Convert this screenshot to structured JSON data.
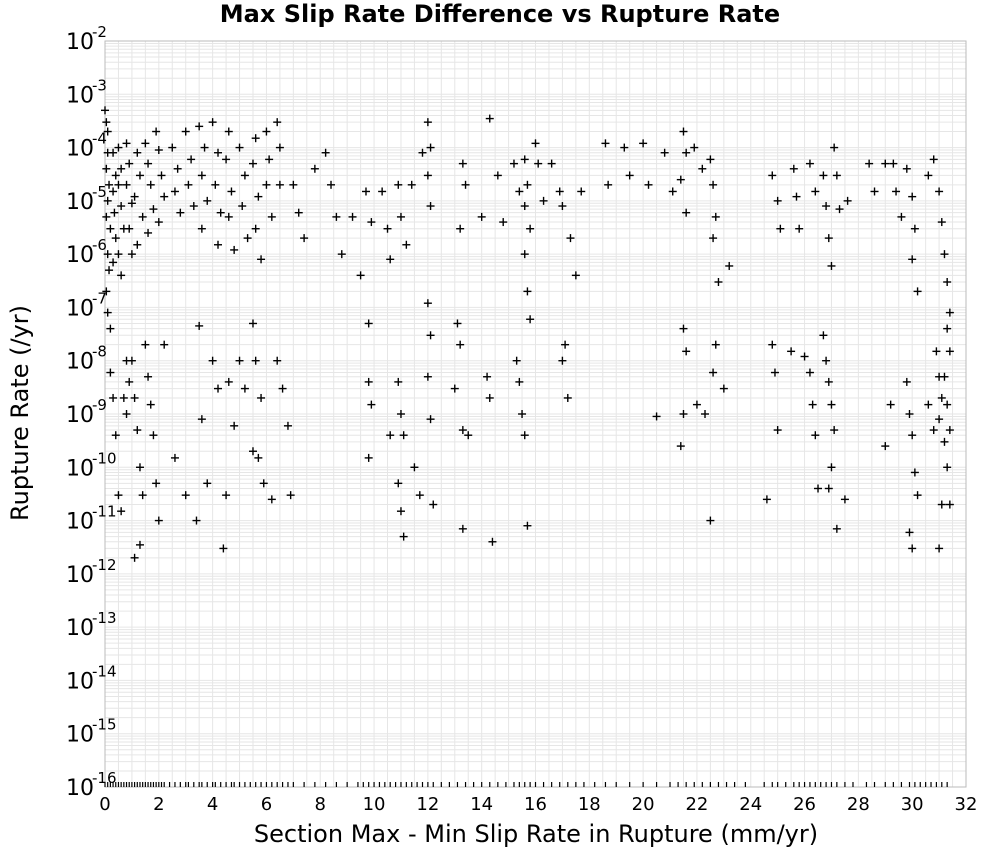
{
  "chart_data": {
    "type": "scatter",
    "title": "Max Slip Rate Difference vs Rupture Rate",
    "xlabel": "Section Max - Min Slip Rate in Rupture (mm/yr)",
    "ylabel": "Rupture Rate (/yr)",
    "xlim": [
      0,
      32
    ],
    "ylim": [
      1e-16,
      0.01
    ],
    "yscale": "log",
    "grid": true,
    "marker": "plus",
    "marker_color": "#000000",
    "grid_color": "#e6e6e6",
    "legend": "none",
    "x_ticks": [
      "0",
      "2",
      "4",
      "6",
      "8",
      "10",
      "12",
      "14",
      "16",
      "18",
      "20",
      "22",
      "24",
      "26",
      "28",
      "30",
      "32"
    ],
    "y_ticks": [
      {
        "base": "10",
        "exp": "-2"
      },
      {
        "base": "10",
        "exp": "-3"
      },
      {
        "base": "10",
        "exp": "-4"
      },
      {
        "base": "10",
        "exp": "-5"
      },
      {
        "base": "10",
        "exp": "-6"
      },
      {
        "base": "10",
        "exp": "-7"
      },
      {
        "base": "10",
        "exp": "-8"
      },
      {
        "base": "10",
        "exp": "-9"
      },
      {
        "base": "10",
        "exp": "-10"
      },
      {
        "base": "10",
        "exp": "-11"
      },
      {
        "base": "10",
        "exp": "-12"
      },
      {
        "base": "10",
        "exp": "-13"
      },
      {
        "base": "10",
        "exp": "-14"
      },
      {
        "base": "10",
        "exp": "-15"
      },
      {
        "base": "10",
        "exp": "-16"
      }
    ],
    "points": [
      [
        0.0,
        0.0005
      ],
      [
        0.05,
        0.0003
      ],
      [
        0.1,
        0.0002
      ],
      [
        0.1,
        8e-05
      ],
      [
        0.05,
        4e-05
      ],
      [
        0.15,
        2e-05
      ],
      [
        0.1,
        1e-05
      ],
      [
        0.05,
        5e-06
      ],
      [
        0.2,
        3e-06
      ],
      [
        0.1,
        1e-06
      ],
      [
        0.15,
        5e-07
      ],
      [
        0.05,
        2e-07
      ],
      [
        0.1,
        8e-08
      ],
      [
        0.2,
        4e-08
      ],
      [
        0.3,
        8e-05
      ],
      [
        0.4,
        3e-05
      ],
      [
        0.3,
        1.5e-05
      ],
      [
        0.35,
        6e-06
      ],
      [
        0.4,
        2e-06
      ],
      [
        0.3,
        7e-07
      ],
      [
        0.5,
        0.0001
      ],
      [
        0.6,
        4e-05
      ],
      [
        0.5,
        2e-05
      ],
      [
        0.6,
        8e-06
      ],
      [
        0.7,
        3e-06
      ],
      [
        0.5,
        1e-06
      ],
      [
        0.6,
        4e-07
      ],
      [
        0.8,
        0.00012
      ],
      [
        0.9,
        5e-05
      ],
      [
        0.8,
        2e-05
      ],
      [
        1.0,
        9e-06
      ],
      [
        0.9,
        3e-06
      ],
      [
        1.0,
        1e-06
      ],
      [
        1.2,
        8e-05
      ],
      [
        1.3,
        3e-05
      ],
      [
        1.1,
        1.2e-05
      ],
      [
        1.4,
        5e-06
      ],
      [
        1.2,
        1.5e-06
      ],
      [
        1.5,
        0.00012
      ],
      [
        1.6,
        5e-05
      ],
      [
        1.7,
        2e-05
      ],
      [
        1.8,
        7e-06
      ],
      [
        1.6,
        2.5e-06
      ],
      [
        1.9,
        0.0002
      ],
      [
        2.0,
        9e-05
      ],
      [
        2.1,
        3e-05
      ],
      [
        2.2,
        1.2e-05
      ],
      [
        2.0,
        4e-06
      ],
      [
        2.5,
        0.0001
      ],
      [
        2.7,
        4e-05
      ],
      [
        2.6,
        1.5e-05
      ],
      [
        2.8,
        6e-06
      ],
      [
        3.0,
        0.0002
      ],
      [
        3.2,
        6e-05
      ],
      [
        3.1,
        2e-05
      ],
      [
        3.3,
        8e-06
      ],
      [
        3.5,
        0.00025
      ],
      [
        3.7,
        0.0001
      ],
      [
        3.6,
        3e-05
      ],
      [
        3.8,
        1e-05
      ],
      [
        3.6,
        3e-06
      ],
      [
        4.0,
        0.0003
      ],
      [
        4.2,
        8e-05
      ],
      [
        4.1,
        2e-05
      ],
      [
        4.3,
        6e-06
      ],
      [
        4.2,
        1.5e-06
      ],
      [
        4.6,
        0.0002
      ],
      [
        4.5,
        6e-05
      ],
      [
        4.7,
        1.5e-05
      ],
      [
        4.6,
        5e-06
      ],
      [
        4.8,
        1.2e-06
      ],
      [
        5.0,
        0.0001
      ],
      [
        5.2,
        3e-05
      ],
      [
        5.1,
        8e-06
      ],
      [
        5.3,
        2e-06
      ],
      [
        5.6,
        0.00015
      ],
      [
        5.5,
        5e-05
      ],
      [
        5.7,
        1.2e-05
      ],
      [
        5.6,
        3e-06
      ],
      [
        5.8,
        8e-07
      ],
      [
        6.0,
        0.0002
      ],
      [
        6.1,
        6e-05
      ],
      [
        6.0,
        2e-05
      ],
      [
        6.2,
        5e-06
      ],
      [
        6.4,
        0.0003
      ],
      [
        6.5,
        0.0001
      ],
      [
        6.5,
        2e-05
      ],
      [
        7.0,
        2e-05
      ],
      [
        7.2,
        6e-06
      ],
      [
        7.4,
        2e-06
      ],
      [
        7.8,
        4e-05
      ],
      [
        8.2,
        8e-05
      ],
      [
        8.4,
        2e-05
      ],
      [
        8.6,
        5e-06
      ],
      [
        8.8,
        1e-06
      ],
      [
        9.2,
        5e-06
      ],
      [
        9.5,
        4e-07
      ],
      [
        9.7,
        1.5e-05
      ],
      [
        9.9,
        4e-06
      ],
      [
        10.3,
        1.5e-05
      ],
      [
        10.5,
        3e-06
      ],
      [
        10.6,
        8e-07
      ],
      [
        10.9,
        2e-05
      ],
      [
        11.0,
        5e-06
      ],
      [
        11.2,
        1.5e-06
      ],
      [
        11.4,
        2e-05
      ],
      [
        11.8,
        8e-05
      ],
      [
        12.0,
        0.0003
      ],
      [
        12.1,
        0.0001
      ],
      [
        12.0,
        3e-05
      ],
      [
        12.1,
        8e-06
      ],
      [
        13.3,
        5e-05
      ],
      [
        13.4,
        2e-05
      ],
      [
        13.2,
        3e-06
      ],
      [
        14.0,
        5e-06
      ],
      [
        14.3,
        0.00035
      ],
      [
        14.6,
        3e-05
      ],
      [
        14.8,
        4e-06
      ],
      [
        15.2,
        5e-05
      ],
      [
        15.4,
        1.5e-05
      ],
      [
        15.6,
        6e-05
      ],
      [
        15.7,
        2e-05
      ],
      [
        15.6,
        8e-06
      ],
      [
        15.8,
        3e-06
      ],
      [
        15.6,
        1e-06
      ],
      [
        16.0,
        0.00012
      ],
      [
        16.1,
        5e-05
      ],
      [
        16.3,
        1e-05
      ],
      [
        16.6,
        5e-05
      ],
      [
        16.9,
        1.5e-05
      ],
      [
        17.0,
        8e-06
      ],
      [
        17.3,
        2e-06
      ],
      [
        17.5,
        4e-07
      ],
      [
        17.7,
        1.5e-05
      ],
      [
        18.6,
        0.00012
      ],
      [
        18.7,
        2e-05
      ],
      [
        19.3,
        0.0001
      ],
      [
        19.5,
        3e-05
      ],
      [
        20.0,
        0.00012
      ],
      [
        20.2,
        2e-05
      ],
      [
        20.8,
        8e-05
      ],
      [
        21.1,
        1.5e-05
      ],
      [
        21.5,
        0.0002
      ],
      [
        21.6,
        8e-05
      ],
      [
        21.4,
        2.5e-05
      ],
      [
        21.6,
        6e-06
      ],
      [
        21.9,
        0.0001
      ],
      [
        22.2,
        4e-05
      ],
      [
        22.5,
        6e-05
      ],
      [
        22.6,
        2e-05
      ],
      [
        22.7,
        5e-06
      ],
      [
        22.6,
        2e-06
      ],
      [
        22.8,
        3e-07
      ],
      [
        23.2,
        6e-07
      ],
      [
        24.8,
        3e-05
      ],
      [
        25.0,
        1e-05
      ],
      [
        25.1,
        3e-06
      ],
      [
        25.6,
        4e-05
      ],
      [
        25.7,
        1.2e-05
      ],
      [
        25.8,
        3e-06
      ],
      [
        26.2,
        5e-05
      ],
      [
        26.4,
        1.5e-05
      ],
      [
        26.7,
        3e-05
      ],
      [
        26.8,
        8e-06
      ],
      [
        26.9,
        2e-06
      ],
      [
        27.0,
        6e-07
      ],
      [
        27.1,
        0.0001
      ],
      [
        27.2,
        3e-05
      ],
      [
        27.3,
        7e-06
      ],
      [
        27.6,
        1e-05
      ],
      [
        28.4,
        5e-05
      ],
      [
        28.6,
        1.5e-05
      ],
      [
        29.0,
        5e-05
      ],
      [
        29.3,
        5e-05
      ],
      [
        29.4,
        1.5e-05
      ],
      [
        29.6,
        5e-06
      ],
      [
        29.8,
        4e-05
      ],
      [
        30.0,
        1.2e-05
      ],
      [
        30.1,
        3e-06
      ],
      [
        30.0,
        8e-07
      ],
      [
        30.2,
        2e-07
      ],
      [
        30.6,
        3e-05
      ],
      [
        30.8,
        6e-05
      ],
      [
        31.0,
        1.5e-05
      ],
      [
        31.1,
        4e-06
      ],
      [
        31.2,
        1e-06
      ],
      [
        31.3,
        3e-07
      ],
      [
        31.4,
        8e-08
      ],
      [
        0.2,
        6e-09
      ],
      [
        0.3,
        2e-09
      ],
      [
        0.4,
        4e-10
      ],
      [
        0.5,
        3e-11
      ],
      [
        0.6,
        1.5e-11
      ],
      [
        0.7,
        2e-09
      ],
      [
        0.8,
        1e-09
      ],
      [
        0.9,
        4e-09
      ],
      [
        1.0,
        1e-08
      ],
      [
        1.1,
        2e-09
      ],
      [
        1.2,
        5e-10
      ],
      [
        1.3,
        1e-10
      ],
      [
        1.4,
        3e-11
      ],
      [
        1.5,
        2e-08
      ],
      [
        1.6,
        5e-09
      ],
      [
        1.7,
        1.5e-09
      ],
      [
        1.8,
        4e-10
      ],
      [
        1.9,
        5e-11
      ],
      [
        2.0,
        1e-11
      ],
      [
        1.3,
        3.5e-12
      ],
      [
        1.1,
        2e-12
      ],
      [
        0.8,
        1e-08
      ],
      [
        2.2,
        2e-08
      ],
      [
        2.6,
        1.5e-10
      ],
      [
        3.0,
        3e-11
      ],
      [
        3.4,
        1e-11
      ],
      [
        3.6,
        8e-10
      ],
      [
        3.8,
        5e-11
      ],
      [
        4.0,
        1e-08
      ],
      [
        4.2,
        3e-09
      ],
      [
        4.5,
        3e-11
      ],
      [
        4.4,
        3e-12
      ],
      [
        4.8,
        6e-10
      ],
      [
        4.6,
        4e-09
      ],
      [
        5.0,
        1e-08
      ],
      [
        5.2,
        3e-09
      ],
      [
        5.5,
        5e-08
      ],
      [
        5.6,
        1e-08
      ],
      [
        5.8,
        2e-09
      ],
      [
        5.5,
        2e-10
      ],
      [
        5.7,
        1.5e-10
      ],
      [
        5.9,
        5e-11
      ],
      [
        6.2,
        2.5e-11
      ],
      [
        6.4,
        1e-08
      ],
      [
        6.6,
        3e-09
      ],
      [
        6.8,
        6e-10
      ],
      [
        6.9,
        3e-11
      ],
      [
        3.5,
        4.5e-08
      ],
      [
        9.8,
        5e-08
      ],
      [
        9.8,
        4e-09
      ],
      [
        9.9,
        1.5e-09
      ],
      [
        9.8,
        1.5e-10
      ],
      [
        10.6,
        4e-10
      ],
      [
        10.9,
        4e-09
      ],
      [
        11.0,
        1e-09
      ],
      [
        11.1,
        4e-10
      ],
      [
        10.9,
        5e-11
      ],
      [
        11.0,
        1.5e-11
      ],
      [
        11.1,
        5e-12
      ],
      [
        11.5,
        1e-10
      ],
      [
        11.7,
        3e-11
      ],
      [
        12.0,
        5e-09
      ],
      [
        12.1,
        8e-10
      ],
      [
        12.2,
        2e-11
      ],
      [
        12.0,
        1.2e-07
      ],
      [
        12.1,
        3e-08
      ],
      [
        13.1,
        5e-08
      ],
      [
        13.2,
        2e-08
      ],
      [
        13.0,
        3e-09
      ],
      [
        13.3,
        5e-10
      ],
      [
        13.5,
        4e-10
      ],
      [
        13.3,
        7e-12
      ],
      [
        14.2,
        5e-09
      ],
      [
        14.3,
        2e-09
      ],
      [
        14.4,
        4e-12
      ],
      [
        15.3,
        1e-08
      ],
      [
        15.4,
        4e-09
      ],
      [
        15.5,
        1e-09
      ],
      [
        15.6,
        4e-10
      ],
      [
        15.7,
        2e-07
      ],
      [
        15.8,
        6e-08
      ],
      [
        15.7,
        8e-12
      ],
      [
        17.1,
        2e-08
      ],
      [
        17.0,
        1e-08
      ],
      [
        17.2,
        2e-09
      ],
      [
        20.5,
        9e-10
      ],
      [
        21.5,
        4e-08
      ],
      [
        21.6,
        1.5e-08
      ],
      [
        21.5,
        1e-09
      ],
      [
        21.4,
        2.5e-10
      ],
      [
        22.0,
        1.5e-09
      ],
      [
        22.3,
        1e-09
      ],
      [
        22.7,
        2e-08
      ],
      [
        22.6,
        6e-09
      ],
      [
        23.0,
        3e-09
      ],
      [
        22.5,
        1e-11
      ],
      [
        24.8,
        2e-08
      ],
      [
        24.9,
        6e-09
      ],
      [
        25.0,
        5e-10
      ],
      [
        24.6,
        2.5e-11
      ],
      [
        25.5,
        1.5e-08
      ],
      [
        26.0,
        1.2e-08
      ],
      [
        26.2,
        6e-09
      ],
      [
        26.3,
        1.5e-09
      ],
      [
        26.4,
        4e-10
      ],
      [
        26.5,
        4e-11
      ],
      [
        26.7,
        3e-08
      ],
      [
        26.8,
        1e-08
      ],
      [
        26.9,
        4e-09
      ],
      [
        27.0,
        1.5e-09
      ],
      [
        27.1,
        5e-10
      ],
      [
        27.0,
        1e-10
      ],
      [
        26.9,
        4e-11
      ],
      [
        27.2,
        7e-12
      ],
      [
        27.5,
        2.5e-11
      ],
      [
        29.0,
        2.5e-10
      ],
      [
        29.2,
        1.5e-09
      ],
      [
        29.8,
        4e-09
      ],
      [
        29.9,
        1e-09
      ],
      [
        30.0,
        4e-10
      ],
      [
        30.1,
        8e-11
      ],
      [
        30.2,
        3e-11
      ],
      [
        29.9,
        6e-12
      ],
      [
        30.0,
        3e-12
      ],
      [
        30.6,
        1.5e-09
      ],
      [
        30.8,
        5e-10
      ],
      [
        30.9,
        1.5e-08
      ],
      [
        31.0,
        5e-09
      ],
      [
        31.1,
        2e-09
      ],
      [
        31.0,
        8e-10
      ],
      [
        31.2,
        3e-10
      ],
      [
        31.3,
        1e-10
      ],
      [
        31.1,
        2e-11
      ],
      [
        31.0,
        3e-12
      ],
      [
        31.3,
        4e-08
      ],
      [
        31.4,
        1.5e-08
      ],
      [
        31.2,
        5e-09
      ],
      [
        31.3,
        1.5e-09
      ],
      [
        31.4,
        5e-10
      ],
      [
        31.4,
        2e-11
      ]
    ],
    "zero_rate_x": [
      0.0,
      0.1,
      0.2,
      0.3,
      0.4,
      0.5,
      0.6,
      0.7,
      0.8,
      0.9,
      1.0,
      1.1,
      1.2,
      1.3,
      1.4,
      1.5,
      1.6,
      1.7,
      1.8,
      1.9,
      2.0,
      2.1,
      2.2,
      2.4,
      2.6,
      2.8,
      3.0,
      3.1,
      3.3,
      3.5,
      3.6,
      3.8,
      4.0,
      4.1,
      4.3,
      4.5,
      4.7,
      4.8,
      5.0,
      5.2,
      5.4,
      5.6,
      5.8,
      6.0,
      6.2,
      6.4,
      6.6,
      6.8,
      7.0,
      7.4,
      7.8,
      8.2,
      8.6,
      9.0,
      9.4,
      9.6,
      9.8,
      10.0,
      10.2,
      10.4,
      10.6,
      10.8,
      11.0,
      11.2,
      11.4,
      11.6,
      11.8,
      12.0,
      12.2,
      12.5,
      12.8,
      13.1,
      13.4,
      13.7,
      14.0,
      14.3,
      14.6,
      14.9,
      15.2,
      15.4,
      15.6,
      15.8,
      16.0,
      16.3,
      16.6,
      16.9,
      17.2,
      17.5,
      17.8,
      18.2,
      18.6,
      19.0,
      19.5,
      20.0,
      20.5,
      21.0,
      21.3,
      21.6,
      21.9,
      22.2,
      22.5,
      22.8,
      23.1,
      23.4,
      23.8,
      24.5,
      24.8,
      25.0,
      25.3,
      25.6,
      25.8,
      26.0,
      26.2,
      26.4,
      26.6,
      26.8,
      27.0,
      27.2,
      27.5,
      27.8,
      28.3,
      28.6,
      29.0,
      29.3,
      29.6,
      29.9,
      30.1,
      30.3,
      30.5,
      30.7,
      30.9,
      31.1,
      31.3
    ]
  }
}
